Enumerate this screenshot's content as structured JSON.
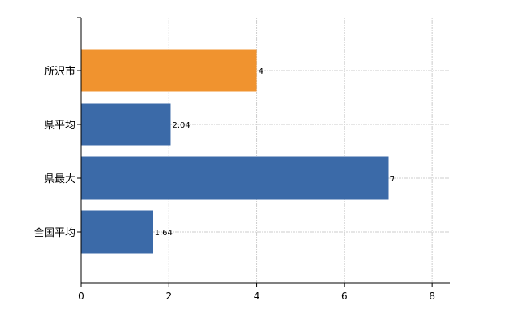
{
  "chart_data": {
    "type": "bar",
    "orientation": "horizontal",
    "categories": [
      "所沢市",
      "県平均",
      "県最大",
      "全国平均"
    ],
    "values": [
      4,
      2.04,
      7,
      1.64
    ],
    "data_labels": [
      "4",
      "2.04",
      "7",
      "1.64"
    ],
    "bar_colors": [
      "#f0932f",
      "#3b6aa8",
      "#3b6aa8",
      "#3b6aa8"
    ],
    "title": "",
    "xlabel": "",
    "ylabel": "",
    "xlim": [
      0,
      8.4
    ],
    "xticks": [
      0,
      2,
      4,
      6,
      8
    ],
    "grid": true,
    "legend": "none"
  }
}
